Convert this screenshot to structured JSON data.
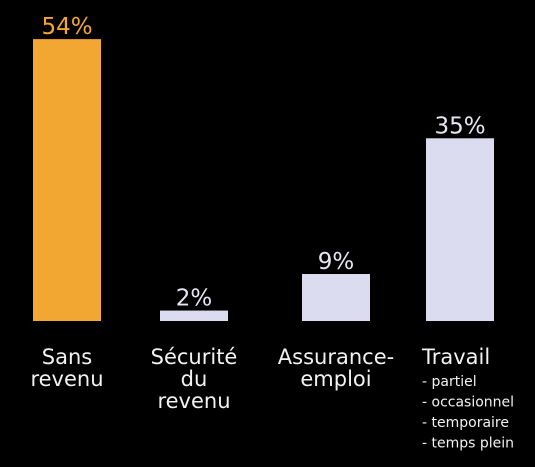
{
  "chart_data": {
    "type": "bar",
    "categories": [
      [
        "Sans",
        "revenu"
      ],
      [
        "Sécurité",
        "du",
        "revenu"
      ],
      [
        "Assurance-",
        "emploi"
      ],
      [
        "Travail"
      ]
    ],
    "values": [
      54,
      2,
      9,
      35
    ],
    "value_labels": [
      "54%",
      "2%",
      "9%",
      "35%"
    ],
    "colors": [
      "#f2a733",
      "#dcdcf0",
      "#dcdcf0",
      "#dcdcf0"
    ],
    "annotations": [
      "- partiel",
      "- occasionnel",
      "- temporaire",
      "- temps plein"
    ]
  }
}
